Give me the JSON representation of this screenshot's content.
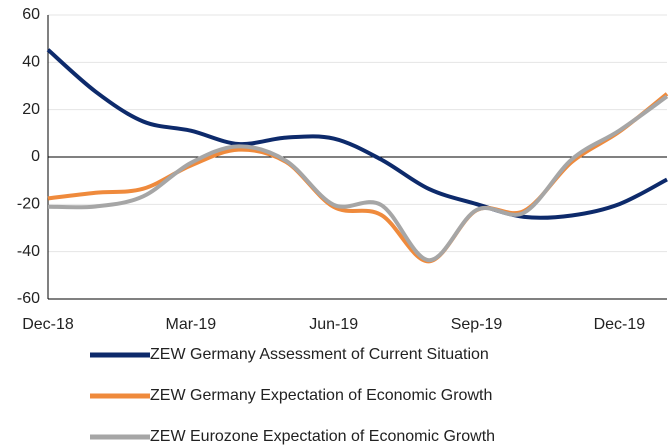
{
  "chart_data": {
    "type": "line",
    "categories": [
      "Dec-18",
      null,
      null,
      "Mar-19",
      null,
      null,
      "Jun-19",
      null,
      null,
      "Sep-19",
      null,
      null,
      "Dec-19",
      null
    ],
    "series": [
      {
        "name": "ZEW Germany Assessment of Current Situation",
        "color": "#0d2a6b",
        "values": [
          45.3,
          27.6,
          15.0,
          11.1,
          5.5,
          8.2,
          7.8,
          -1.1,
          -13.5,
          -19.9,
          -25.3,
          -24.7,
          -19.9,
          -9.5
        ]
      },
      {
        "name": "ZEW Germany Expectation of Economic Growth",
        "color": "#ef8a3c",
        "values": [
          -17.5,
          -15.1,
          -13.4,
          -3.6,
          3.1,
          -2.1,
          -21.1,
          -24.5,
          -44.1,
          -22.5,
          -22.8,
          -2.1,
          10.7,
          26.7
        ]
      },
      {
        "name": "ZEW Eurozone Expectation of Economic Growth",
        "color": "#a6a6a6",
        "values": [
          -21.0,
          -20.9,
          -16.6,
          -2.5,
          4.5,
          -1.6,
          -20.2,
          -20.3,
          -43.6,
          -22.4,
          -23.5,
          -1.0,
          11.2,
          25.6
        ]
      }
    ],
    "ylim": [
      -60,
      60
    ],
    "yticks": [
      -60,
      -40,
      -20,
      0,
      20,
      40,
      60
    ],
    "grid": true,
    "legend": "bottom"
  }
}
